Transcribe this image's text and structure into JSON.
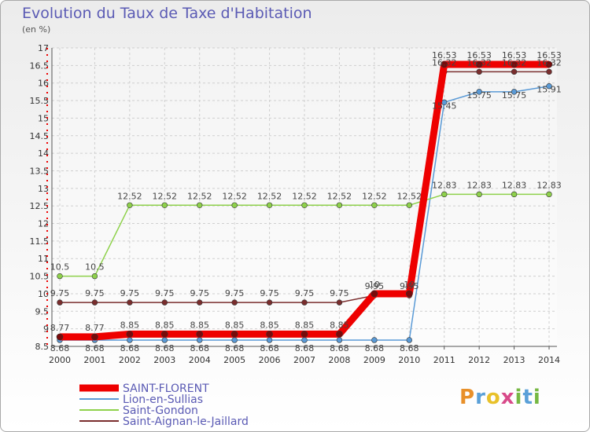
{
  "chart_data": {
    "type": "line",
    "title": "Evolution du Taux de Taxe d'Habitation",
    "subtitle": "(en %)",
    "x": [
      "2000",
      "2001",
      "2002",
      "2003",
      "2004",
      "2005",
      "2006",
      "2007",
      "2008",
      "2009",
      "2010",
      "2011",
      "2012",
      "2013",
      "2014"
    ],
    "ylim": [
      8.5,
      17
    ],
    "yticks": [
      8.5,
      9,
      9.5,
      10,
      10.5,
      11,
      11.5,
      12,
      12.5,
      13,
      13.5,
      14,
      14.5,
      15,
      15.5,
      16,
      16.5,
      17
    ],
    "grid": true,
    "legend_position": "bottom-left",
    "series": [
      {
        "name": "SAINT-FLORENT",
        "color": "#ee0000",
        "values": [
          8.77,
          8.77,
          8.85,
          8.85,
          8.85,
          8.85,
          8.85,
          8.85,
          8.85,
          10,
          10,
          16.53,
          16.53,
          16.53,
          16.53
        ],
        "labels": [
          "8.77",
          "8.77",
          "8.85",
          "8.85",
          "8.85",
          "8.85",
          "8.85",
          "8.85",
          "8.85",
          "10",
          "10",
          "16.53",
          "16.53",
          "16.53",
          "16.53"
        ]
      },
      {
        "name": "Lion-en-Sullias",
        "color": "#5a9ad6",
        "values": [
          8.68,
          8.68,
          8.68,
          8.68,
          8.68,
          8.68,
          8.68,
          8.68,
          8.68,
          8.68,
          8.68,
          15.45,
          15.75,
          15.75,
          15.91
        ],
        "labels": [
          "8.68",
          "8.68",
          "8.68",
          "8.68",
          "8.68",
          "8.68",
          "8.68",
          "8.68",
          "8.68",
          "8.68",
          "8.68",
          "15.45",
          "15.75",
          "15.75",
          "15.91"
        ]
      },
      {
        "name": "Saint-Gondon",
        "color": "#8ed14b",
        "values": [
          10.5,
          10.5,
          12.52,
          12.52,
          12.52,
          12.52,
          12.52,
          12.52,
          12.52,
          12.52,
          12.52,
          12.83,
          12.83,
          12.83,
          12.83
        ],
        "labels": [
          "10.5",
          "10.5",
          "12.52",
          "12.52",
          "12.52",
          "12.52",
          "12.52",
          "12.52",
          "12.52",
          "12.52",
          "12.52",
          "12.83",
          "12.83",
          "12.83",
          "12.83"
        ]
      },
      {
        "name": "Saint-Aignan-le-Jaillard",
        "color": "#7a2e2e",
        "values": [
          9.75,
          9.75,
          9.75,
          9.75,
          9.75,
          9.75,
          9.75,
          9.75,
          9.75,
          9.95,
          9.95,
          16.32,
          16.32,
          16.32,
          16.32
        ],
        "labels": [
          "9.75",
          "9.75",
          "9.75",
          "9.75",
          "9.75",
          "9.75",
          "9.75",
          "9.75",
          "9.75",
          "9.95",
          "9.95",
          "16.32",
          "16.32",
          "16.32",
          "16.32"
        ]
      }
    ]
  },
  "brand": {
    "letters": [
      "P",
      "r",
      "o",
      "x",
      "i",
      "t",
      "i"
    ],
    "colors": [
      "#e8902a",
      "#5aa0d8",
      "#e8c12a",
      "#d84a8a",
      "#76b843",
      "#5aa0d8",
      "#76b843"
    ]
  }
}
